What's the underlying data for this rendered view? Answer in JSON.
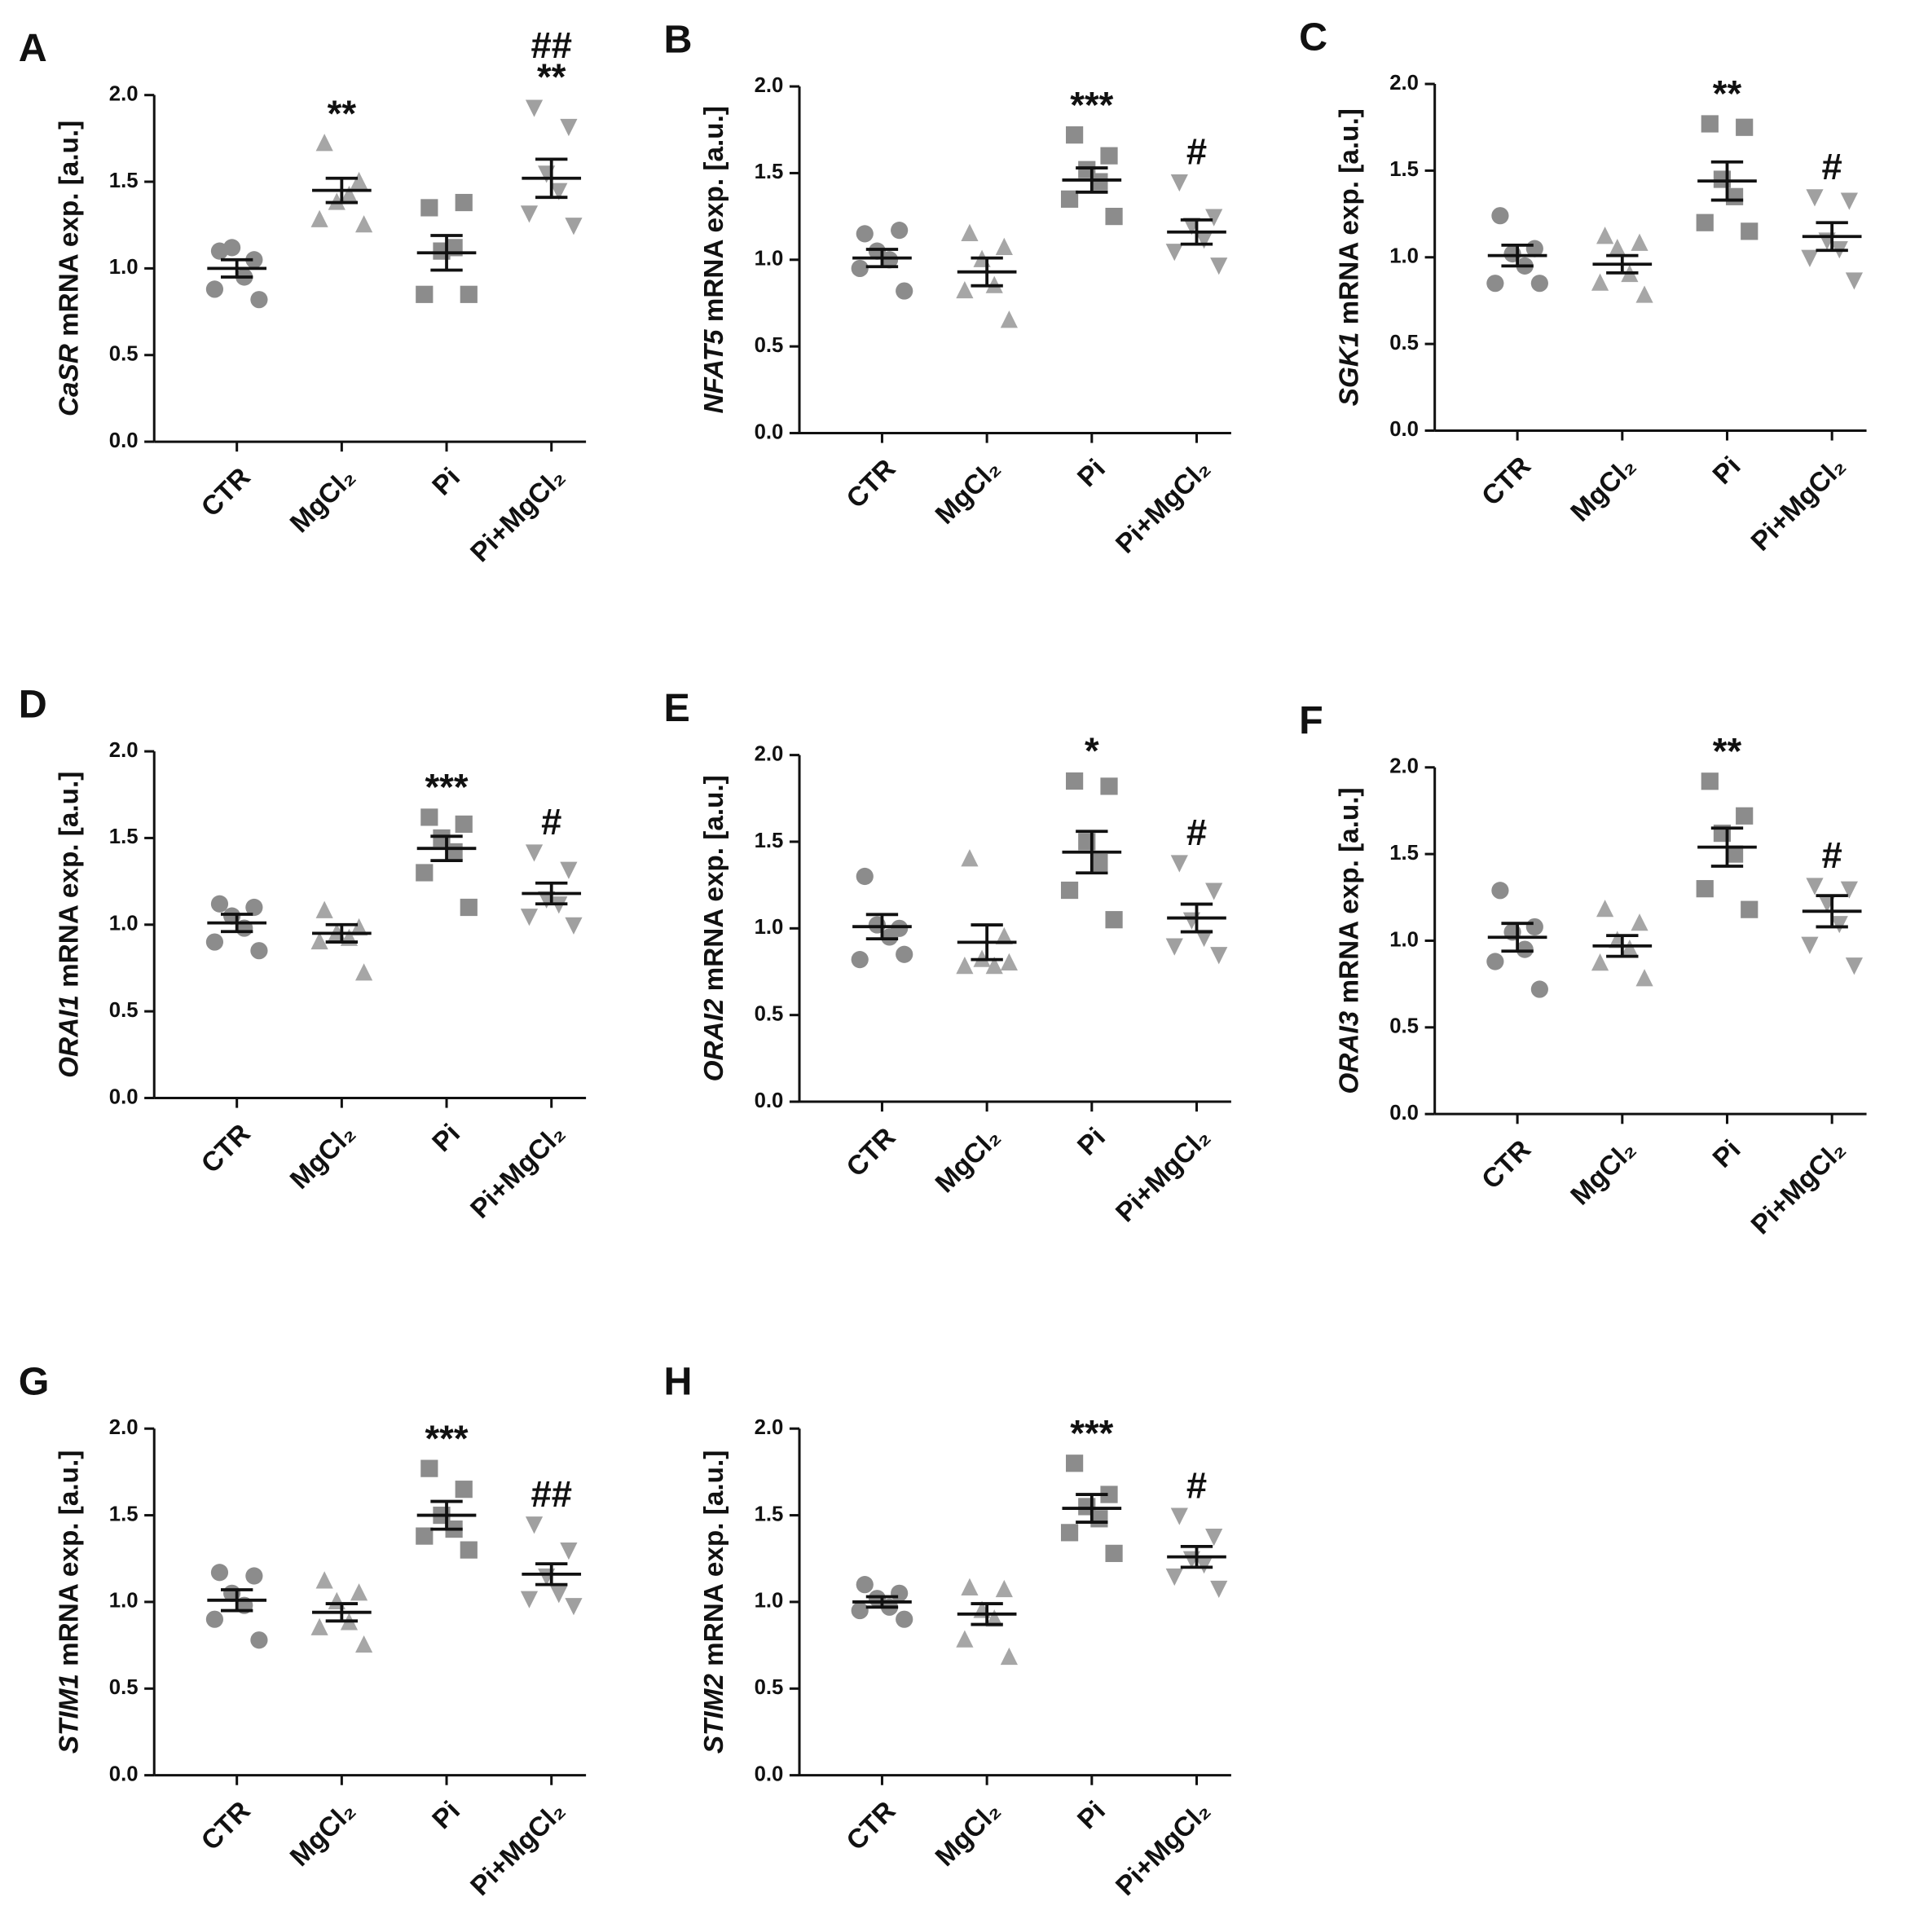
{
  "chart_data": [
    {
      "type": "dot",
      "letter": "A",
      "ylabel": {
        "gene": "CaSR",
        "unit": " mRNA exp. [a.u.]"
      },
      "categories": [
        "CTR",
        "MgCl₂",
        "Pi",
        "Pi+MgCl₂"
      ],
      "markers": [
        "circle",
        "triangle",
        "square",
        "triangle-down"
      ],
      "colors": [
        "#8c8c8c",
        "#a6a6a6",
        "#8c8c8c",
        "#a0a0a0"
      ],
      "ylim": [
        0,
        2
      ],
      "yticks": [
        {
          "value": 0,
          "label": "0.0"
        },
        0.5,
        {
          "value": 1,
          "label": "1.0"
        },
        1.5,
        {
          "value": 2,
          "label": "2.0"
        }
      ],
      "points": [
        [
          1.1,
          1.05,
          1.12,
          0.95,
          0.88,
          0.82
        ],
        [
          1.72,
          1.5,
          1.38,
          1.42,
          1.28,
          1.25
        ],
        [
          1.35,
          1.38,
          1.1,
          1.12,
          0.85,
          0.85
        ],
        [
          1.93,
          1.82,
          1.55,
          1.45,
          1.32,
          1.25
        ]
      ],
      "means": [
        1.0,
        1.45,
        1.09,
        1.52
      ],
      "sems": [
        0.05,
        0.07,
        0.1,
        0.11
      ],
      "annotations": [
        null,
        [
          "**"
        ],
        null,
        [
          "##",
          "**"
        ]
      ]
    },
    {
      "type": "dot",
      "letter": "B",
      "ylabel": {
        "gene": "NFAT5",
        "unit": " mRNA exp. [a.u.]"
      },
      "categories": [
        "CTR",
        "MgCl₂",
        "Pi",
        "Pi+MgCl₂"
      ],
      "markers": [
        "circle",
        "triangle",
        "square",
        "triangle-down"
      ],
      "colors": [
        "#8c8c8c",
        "#a6a6a6",
        "#8c8c8c",
        "#a0a0a0"
      ],
      "ylim": [
        0,
        2
      ],
      "yticks": [
        {
          "value": 0,
          "label": "0.0"
        },
        0.5,
        {
          "value": 1,
          "label": "1.0"
        },
        1.5,
        {
          "value": 2,
          "label": "2.0"
        }
      ],
      "points": [
        [
          1.15,
          1.17,
          1.05,
          1.0,
          0.95,
          0.82
        ],
        [
          1.15,
          1.07,
          1.0,
          0.85,
          0.82,
          0.65
        ],
        [
          1.72,
          1.6,
          1.52,
          1.45,
          1.35,
          1.25
        ],
        [
          1.45,
          1.25,
          1.2,
          1.12,
          1.05,
          0.97
        ]
      ],
      "means": [
        1.01,
        0.93,
        1.46,
        1.16
      ],
      "sems": [
        0.05,
        0.08,
        0.07,
        0.07
      ],
      "annotations": [
        null,
        null,
        [
          "***"
        ],
        [
          "#"
        ]
      ]
    },
    {
      "type": "dot",
      "letter": "C",
      "ylabel": {
        "gene": "SGK1",
        "unit": " mRNA exp. [a.u.]"
      },
      "categories": [
        "CTR",
        "MgCl₂",
        "Pi",
        "Pi+MgCl₂"
      ],
      "markers": [
        "circle",
        "triangle",
        "square",
        "triangle-down"
      ],
      "colors": [
        "#8c8c8c",
        "#a6a6a6",
        "#8c8c8c",
        "#a0a0a0"
      ],
      "ylim": [
        0,
        2
      ],
      "yticks": [
        {
          "value": 0,
          "label": "0.0"
        },
        0.5,
        {
          "value": 1,
          "label": "1.0"
        },
        1.5,
        {
          "value": 2,
          "label": "2.0"
        }
      ],
      "points": [
        [
          1.24,
          1.05,
          1.02,
          0.95,
          0.85,
          0.85
        ],
        [
          1.12,
          1.08,
          1.05,
          0.9,
          0.85,
          0.78
        ],
        [
          1.77,
          1.75,
          1.45,
          1.35,
          1.2,
          1.15
        ],
        [
          1.35,
          1.33,
          1.1,
          1.05,
          1.0,
          0.87
        ]
      ],
      "means": [
        1.01,
        0.96,
        1.44,
        1.12
      ],
      "sems": [
        0.06,
        0.05,
        0.11,
        0.08
      ],
      "annotations": [
        null,
        null,
        [
          "**"
        ],
        [
          "#"
        ]
      ]
    },
    {
      "type": "dot",
      "letter": "D",
      "ylabel": {
        "gene": "ORAI1",
        "unit": " mRNA exp. [a.u.]"
      },
      "categories": [
        "CTR",
        "MgCl₂",
        "Pi",
        "Pi+MgCl₂"
      ],
      "markers": [
        "circle",
        "triangle",
        "square",
        "triangle-down"
      ],
      "colors": [
        "#8c8c8c",
        "#a6a6a6",
        "#8c8c8c",
        "#a0a0a0"
      ],
      "ylim": [
        0,
        2
      ],
      "yticks": [
        {
          "value": 0,
          "label": "0.0"
        },
        0.5,
        {
          "value": 1,
          "label": "1.0"
        },
        1.5,
        {
          "value": 2,
          "label": "2.0"
        }
      ],
      "points": [
        [
          1.12,
          1.1,
          1.05,
          0.98,
          0.9,
          0.85
        ],
        [
          1.08,
          0.98,
          0.95,
          0.92,
          0.9,
          0.72
        ],
        [
          1.62,
          1.58,
          1.5,
          1.42,
          1.3,
          1.1
        ],
        [
          1.42,
          1.32,
          1.15,
          1.12,
          1.05,
          1.0
        ]
      ],
      "means": [
        1.01,
        0.95,
        1.44,
        1.18
      ],
      "sems": [
        0.05,
        0.05,
        0.07,
        0.06
      ],
      "annotations": [
        null,
        null,
        [
          "***"
        ],
        [
          "#"
        ]
      ]
    },
    {
      "type": "dot",
      "letter": "E",
      "ylabel": {
        "gene": "ORAI2",
        "unit": " mRNA exp. [a.u.]"
      },
      "categories": [
        "CTR",
        "MgCl₂",
        "Pi",
        "Pi+MgCl₂"
      ],
      "markers": [
        "circle",
        "triangle",
        "square",
        "triangle-down"
      ],
      "colors": [
        "#8c8c8c",
        "#a6a6a6",
        "#8c8c8c",
        "#a0a0a0"
      ],
      "ylim": [
        0,
        2
      ],
      "yticks": [
        {
          "value": 0,
          "label": "0.0"
        },
        0.5,
        {
          "value": 1,
          "label": "1.0"
        },
        1.5,
        {
          "value": 2,
          "label": "2.0"
        }
      ],
      "points": [
        [
          1.3,
          1.0,
          1.02,
          0.95,
          0.82,
          0.85
        ],
        [
          1.4,
          0.95,
          0.82,
          0.78,
          0.78,
          0.8
        ],
        [
          1.85,
          1.82,
          1.5,
          1.38,
          1.22,
          1.05
        ],
        [
          1.38,
          1.22,
          1.05,
          0.95,
          0.9,
          0.85
        ]
      ],
      "means": [
        1.01,
        0.92,
        1.44,
        1.06
      ],
      "sems": [
        0.07,
        0.1,
        0.12,
        0.08
      ],
      "annotations": [
        null,
        null,
        [
          "*"
        ],
        [
          "#"
        ]
      ]
    },
    {
      "type": "dot",
      "letter": "F",
      "ylabel": {
        "gene": "ORAI3",
        "unit": " mRNA exp. [a.u.]"
      },
      "categories": [
        "CTR",
        "MgCl₂",
        "Pi",
        "Pi+MgCl₂"
      ],
      "markers": [
        "circle",
        "triangle",
        "square",
        "triangle-down"
      ],
      "colors": [
        "#8c8c8c",
        "#a6a6a6",
        "#8c8c8c",
        "#a0a0a0"
      ],
      "ylim": [
        0,
        2
      ],
      "yticks": [
        {
          "value": 0,
          "label": "0.0"
        },
        0.5,
        {
          "value": 1,
          "label": "1.0"
        },
        1.5,
        {
          "value": 2,
          "label": "2.0"
        }
      ],
      "points": [
        [
          1.29,
          1.08,
          1.05,
          0.95,
          0.88,
          0.72
        ],
        [
          1.18,
          1.1,
          1.0,
          0.95,
          0.87,
          0.78
        ],
        [
          1.92,
          1.72,
          1.62,
          1.5,
          1.3,
          1.18
        ],
        [
          1.32,
          1.3,
          1.22,
          1.1,
          0.98,
          0.86
        ]
      ],
      "means": [
        1.02,
        0.97,
        1.54,
        1.17
      ],
      "sems": [
        0.08,
        0.06,
        0.11,
        0.09
      ],
      "annotations": [
        null,
        null,
        [
          "**"
        ],
        [
          "#"
        ]
      ]
    },
    {
      "type": "dot",
      "letter": "G",
      "ylabel": {
        "gene": "STIM1",
        "unit": " mRNA exp. [a.u.]"
      },
      "categories": [
        "CTR",
        "MgCl₂",
        "Pi",
        "Pi+MgCl₂"
      ],
      "markers": [
        "circle",
        "triangle",
        "square",
        "triangle-down"
      ],
      "colors": [
        "#8c8c8c",
        "#a6a6a6",
        "#8c8c8c",
        "#a0a0a0"
      ],
      "ylim": [
        0,
        2
      ],
      "yticks": [
        {
          "value": 0,
          "label": "0.0"
        },
        0.5,
        {
          "value": 1,
          "label": "1.0"
        },
        1.5,
        {
          "value": 2,
          "label": "2.0"
        }
      ],
      "points": [
        [
          1.17,
          1.15,
          1.05,
          0.98,
          0.9,
          0.78
        ],
        [
          1.12,
          1.05,
          1.0,
          0.88,
          0.85,
          0.75
        ],
        [
          1.77,
          1.65,
          1.5,
          1.42,
          1.38,
          1.3
        ],
        [
          1.45,
          1.3,
          1.15,
          1.05,
          1.02,
          0.98
        ]
      ],
      "means": [
        1.01,
        0.94,
        1.5,
        1.16
      ],
      "sems": [
        0.06,
        0.05,
        0.08,
        0.06
      ],
      "annotations": [
        null,
        null,
        [
          "***"
        ],
        [
          "##"
        ]
      ]
    },
    {
      "type": "dot",
      "letter": "H",
      "ylabel": {
        "gene": "STIM2",
        "unit": " mRNA exp. [a.u.]"
      },
      "categories": [
        "CTR",
        "MgCl₂",
        "Pi",
        "Pi+MgCl₂"
      ],
      "markers": [
        "circle",
        "triangle",
        "square",
        "triangle-down"
      ],
      "colors": [
        "#8c8c8c",
        "#a6a6a6",
        "#8c8c8c",
        "#a0a0a0"
      ],
      "ylim": [
        0,
        2
      ],
      "yticks": [
        {
          "value": 0,
          "label": "0.0"
        },
        0.5,
        {
          "value": 1,
          "label": "1.0"
        },
        1.5,
        {
          "value": 2,
          "label": "2.0"
        }
      ],
      "points": [
        [
          1.1,
          1.05,
          1.02,
          0.97,
          0.95,
          0.9
        ],
        [
          1.08,
          1.07,
          0.95,
          0.9,
          0.78,
          0.68
        ],
        [
          1.8,
          1.62,
          1.55,
          1.48,
          1.4,
          1.28
        ],
        [
          1.5,
          1.38,
          1.25,
          1.22,
          1.15,
          1.08
        ]
      ],
      "means": [
        1.0,
        0.93,
        1.54,
        1.26
      ],
      "sems": [
        0.03,
        0.06,
        0.08,
        0.06
      ],
      "annotations": [
        null,
        null,
        [
          "***"
        ],
        [
          "#"
        ]
      ]
    }
  ]
}
